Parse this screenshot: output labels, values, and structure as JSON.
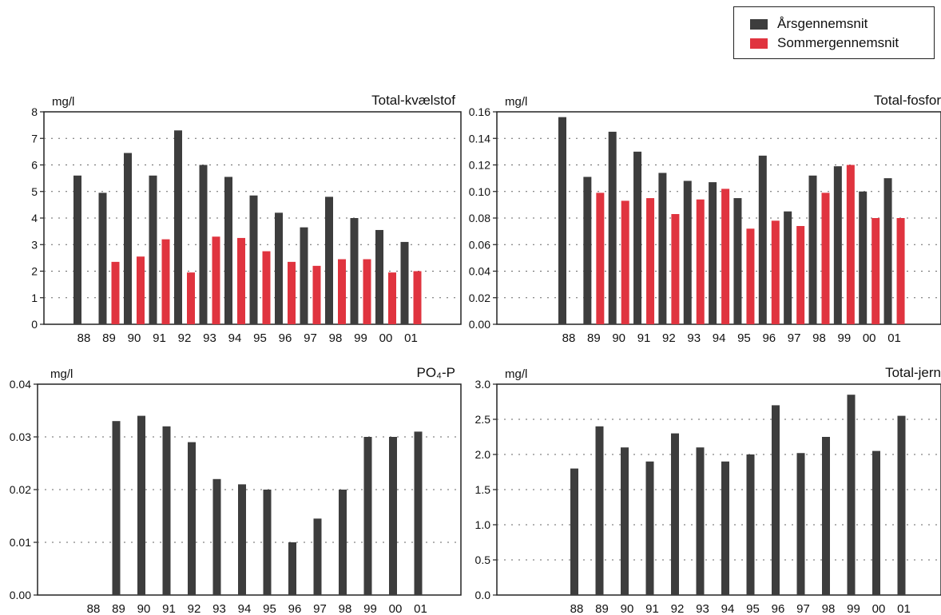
{
  "legend": {
    "items": [
      {
        "label": "Årsgennemsnit",
        "color": "#3d3d3d"
      },
      {
        "label": "Sommergennemsnit",
        "color": "#e0343f"
      }
    ]
  },
  "chart_data": [
    {
      "type": "bar",
      "title": "Total-kvælstof",
      "ylabel": "mg/l",
      "categories": [
        "88",
        "89",
        "90",
        "91",
        "92",
        "93",
        "94",
        "95",
        "96",
        "97",
        "98",
        "99",
        "00",
        "01"
      ],
      "ylim": [
        0,
        8
      ],
      "yticks": [
        "0",
        "1",
        "2",
        "3",
        "4",
        "5",
        "6",
        "7",
        "8"
      ],
      "grid": true,
      "series": [
        {
          "name": "Årsgennemsnit",
          "values": [
            5.6,
            4.95,
            6.45,
            5.6,
            7.3,
            6.0,
            5.55,
            4.85,
            4.2,
            3.65,
            4.8,
            4.0,
            3.55,
            3.1
          ]
        },
        {
          "name": "Sommergennemsnit",
          "values": [
            null,
            2.35,
            2.55,
            3.2,
            1.95,
            3.3,
            3.25,
            2.75,
            2.35,
            2.2,
            2.45,
            2.45,
            1.95,
            2.0
          ]
        }
      ]
    },
    {
      "type": "bar",
      "title": "Total-fosfor",
      "ylabel": "mg/l",
      "categories": [
        "88",
        "89",
        "90",
        "91",
        "92",
        "93",
        "94",
        "95",
        "96",
        "97",
        "98",
        "99",
        "00",
        "01"
      ],
      "ylim": [
        0,
        0.16
      ],
      "yticks": [
        "0.00",
        "0.02",
        "0.04",
        "0.06",
        "0.08",
        "0.10",
        "0.12",
        "0.14",
        "0.16"
      ],
      "grid": true,
      "series": [
        {
          "name": "Årsgennemsnit",
          "values": [
            0.156,
            0.111,
            0.145,
            0.13,
            0.114,
            0.108,
            0.107,
            0.095,
            0.127,
            0.085,
            0.112,
            0.119,
            0.1,
            0.11
          ]
        },
        {
          "name": "Sommergennemsnit",
          "values": [
            null,
            0.099,
            0.093,
            0.095,
            0.083,
            0.094,
            0.102,
            0.072,
            0.078,
            0.074,
            0.099,
            0.12,
            0.08,
            0.08
          ]
        }
      ]
    },
    {
      "type": "bar",
      "title": "PO₄-P",
      "ylabel": "mg/l",
      "categories": [
        "88",
        "89",
        "90",
        "91",
        "92",
        "93",
        "94",
        "95",
        "96",
        "97",
        "98",
        "99",
        "00",
        "01"
      ],
      "ylim": [
        0,
        0.04
      ],
      "yticks": [
        "0.00",
        "0.01",
        "0.02",
        "0.03",
        "0.04"
      ],
      "grid": true,
      "series": [
        {
          "name": "Årsgennemsnit",
          "values": [
            null,
            0.033,
            0.034,
            0.032,
            0.029,
            0.022,
            0.021,
            0.02,
            0.01,
            0.0145,
            0.02,
            0.03,
            0.03,
            0.031
          ]
        }
      ]
    },
    {
      "type": "bar",
      "title": "Total-jern",
      "ylabel": "mg/l",
      "categories": [
        "88",
        "89",
        "90",
        "91",
        "92",
        "93",
        "94",
        "95",
        "96",
        "97",
        "98",
        "99",
        "00",
        "01"
      ],
      "ylim": [
        0,
        3.0
      ],
      "yticks": [
        "0.0",
        "0.5",
        "1.0",
        "1.5",
        "2.0",
        "2.5",
        "3.0"
      ],
      "grid": true,
      "series": [
        {
          "name": "Årsgennemsnit",
          "values": [
            1.8,
            2.4,
            2.1,
            1.9,
            2.3,
            2.1,
            1.9,
            2.0,
            2.7,
            2.02,
            2.25,
            2.85,
            2.05,
            2.55
          ]
        }
      ]
    }
  ]
}
